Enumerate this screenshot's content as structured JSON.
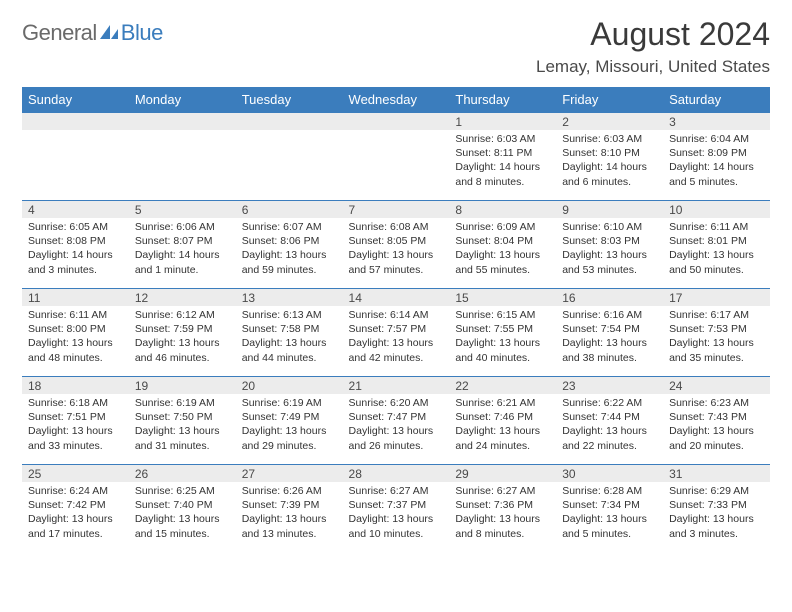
{
  "logo": {
    "part1": "General",
    "part2": "Blue"
  },
  "title": "August 2024",
  "location": "Lemay, Missouri, United States",
  "weekday_headers": [
    "Sunday",
    "Monday",
    "Tuesday",
    "Wednesday",
    "Thursday",
    "Friday",
    "Saturday"
  ],
  "colors": {
    "header_bg": "#3b7dbd",
    "header_text": "#ffffff",
    "daynum_bg": "#ececec",
    "border": "#3b7dbd",
    "logo_gray": "#6a6a6a",
    "logo_blue": "#3b7dbd"
  },
  "weeks": [
    [
      null,
      null,
      null,
      null,
      {
        "n": "1",
        "sunrise": "6:03 AM",
        "sunset": "8:11 PM",
        "daylight": "14 hours and 8 minutes."
      },
      {
        "n": "2",
        "sunrise": "6:03 AM",
        "sunset": "8:10 PM",
        "daylight": "14 hours and 6 minutes."
      },
      {
        "n": "3",
        "sunrise": "6:04 AM",
        "sunset": "8:09 PM",
        "daylight": "14 hours and 5 minutes."
      }
    ],
    [
      {
        "n": "4",
        "sunrise": "6:05 AM",
        "sunset": "8:08 PM",
        "daylight": "14 hours and 3 minutes."
      },
      {
        "n": "5",
        "sunrise": "6:06 AM",
        "sunset": "8:07 PM",
        "daylight": "14 hours and 1 minute."
      },
      {
        "n": "6",
        "sunrise": "6:07 AM",
        "sunset": "8:06 PM",
        "daylight": "13 hours and 59 minutes."
      },
      {
        "n": "7",
        "sunrise": "6:08 AM",
        "sunset": "8:05 PM",
        "daylight": "13 hours and 57 minutes."
      },
      {
        "n": "8",
        "sunrise": "6:09 AM",
        "sunset": "8:04 PM",
        "daylight": "13 hours and 55 minutes."
      },
      {
        "n": "9",
        "sunrise": "6:10 AM",
        "sunset": "8:03 PM",
        "daylight": "13 hours and 53 minutes."
      },
      {
        "n": "10",
        "sunrise": "6:11 AM",
        "sunset": "8:01 PM",
        "daylight": "13 hours and 50 minutes."
      }
    ],
    [
      {
        "n": "11",
        "sunrise": "6:11 AM",
        "sunset": "8:00 PM",
        "daylight": "13 hours and 48 minutes."
      },
      {
        "n": "12",
        "sunrise": "6:12 AM",
        "sunset": "7:59 PM",
        "daylight": "13 hours and 46 minutes."
      },
      {
        "n": "13",
        "sunrise": "6:13 AM",
        "sunset": "7:58 PM",
        "daylight": "13 hours and 44 minutes."
      },
      {
        "n": "14",
        "sunrise": "6:14 AM",
        "sunset": "7:57 PM",
        "daylight": "13 hours and 42 minutes."
      },
      {
        "n": "15",
        "sunrise": "6:15 AM",
        "sunset": "7:55 PM",
        "daylight": "13 hours and 40 minutes."
      },
      {
        "n": "16",
        "sunrise": "6:16 AM",
        "sunset": "7:54 PM",
        "daylight": "13 hours and 38 minutes."
      },
      {
        "n": "17",
        "sunrise": "6:17 AM",
        "sunset": "7:53 PM",
        "daylight": "13 hours and 35 minutes."
      }
    ],
    [
      {
        "n": "18",
        "sunrise": "6:18 AM",
        "sunset": "7:51 PM",
        "daylight": "13 hours and 33 minutes."
      },
      {
        "n": "19",
        "sunrise": "6:19 AM",
        "sunset": "7:50 PM",
        "daylight": "13 hours and 31 minutes."
      },
      {
        "n": "20",
        "sunrise": "6:19 AM",
        "sunset": "7:49 PM",
        "daylight": "13 hours and 29 minutes."
      },
      {
        "n": "21",
        "sunrise": "6:20 AM",
        "sunset": "7:47 PM",
        "daylight": "13 hours and 26 minutes."
      },
      {
        "n": "22",
        "sunrise": "6:21 AM",
        "sunset": "7:46 PM",
        "daylight": "13 hours and 24 minutes."
      },
      {
        "n": "23",
        "sunrise": "6:22 AM",
        "sunset": "7:44 PM",
        "daylight": "13 hours and 22 minutes."
      },
      {
        "n": "24",
        "sunrise": "6:23 AM",
        "sunset": "7:43 PM",
        "daylight": "13 hours and 20 minutes."
      }
    ],
    [
      {
        "n": "25",
        "sunrise": "6:24 AM",
        "sunset": "7:42 PM",
        "daylight": "13 hours and 17 minutes."
      },
      {
        "n": "26",
        "sunrise": "6:25 AM",
        "sunset": "7:40 PM",
        "daylight": "13 hours and 15 minutes."
      },
      {
        "n": "27",
        "sunrise": "6:26 AM",
        "sunset": "7:39 PM",
        "daylight": "13 hours and 13 minutes."
      },
      {
        "n": "28",
        "sunrise": "6:27 AM",
        "sunset": "7:37 PM",
        "daylight": "13 hours and 10 minutes."
      },
      {
        "n": "29",
        "sunrise": "6:27 AM",
        "sunset": "7:36 PM",
        "daylight": "13 hours and 8 minutes."
      },
      {
        "n": "30",
        "sunrise": "6:28 AM",
        "sunset": "7:34 PM",
        "daylight": "13 hours and 5 minutes."
      },
      {
        "n": "31",
        "sunrise": "6:29 AM",
        "sunset": "7:33 PM",
        "daylight": "13 hours and 3 minutes."
      }
    ]
  ],
  "labels": {
    "sunrise": "Sunrise:",
    "sunset": "Sunset:",
    "daylight": "Daylight:"
  }
}
